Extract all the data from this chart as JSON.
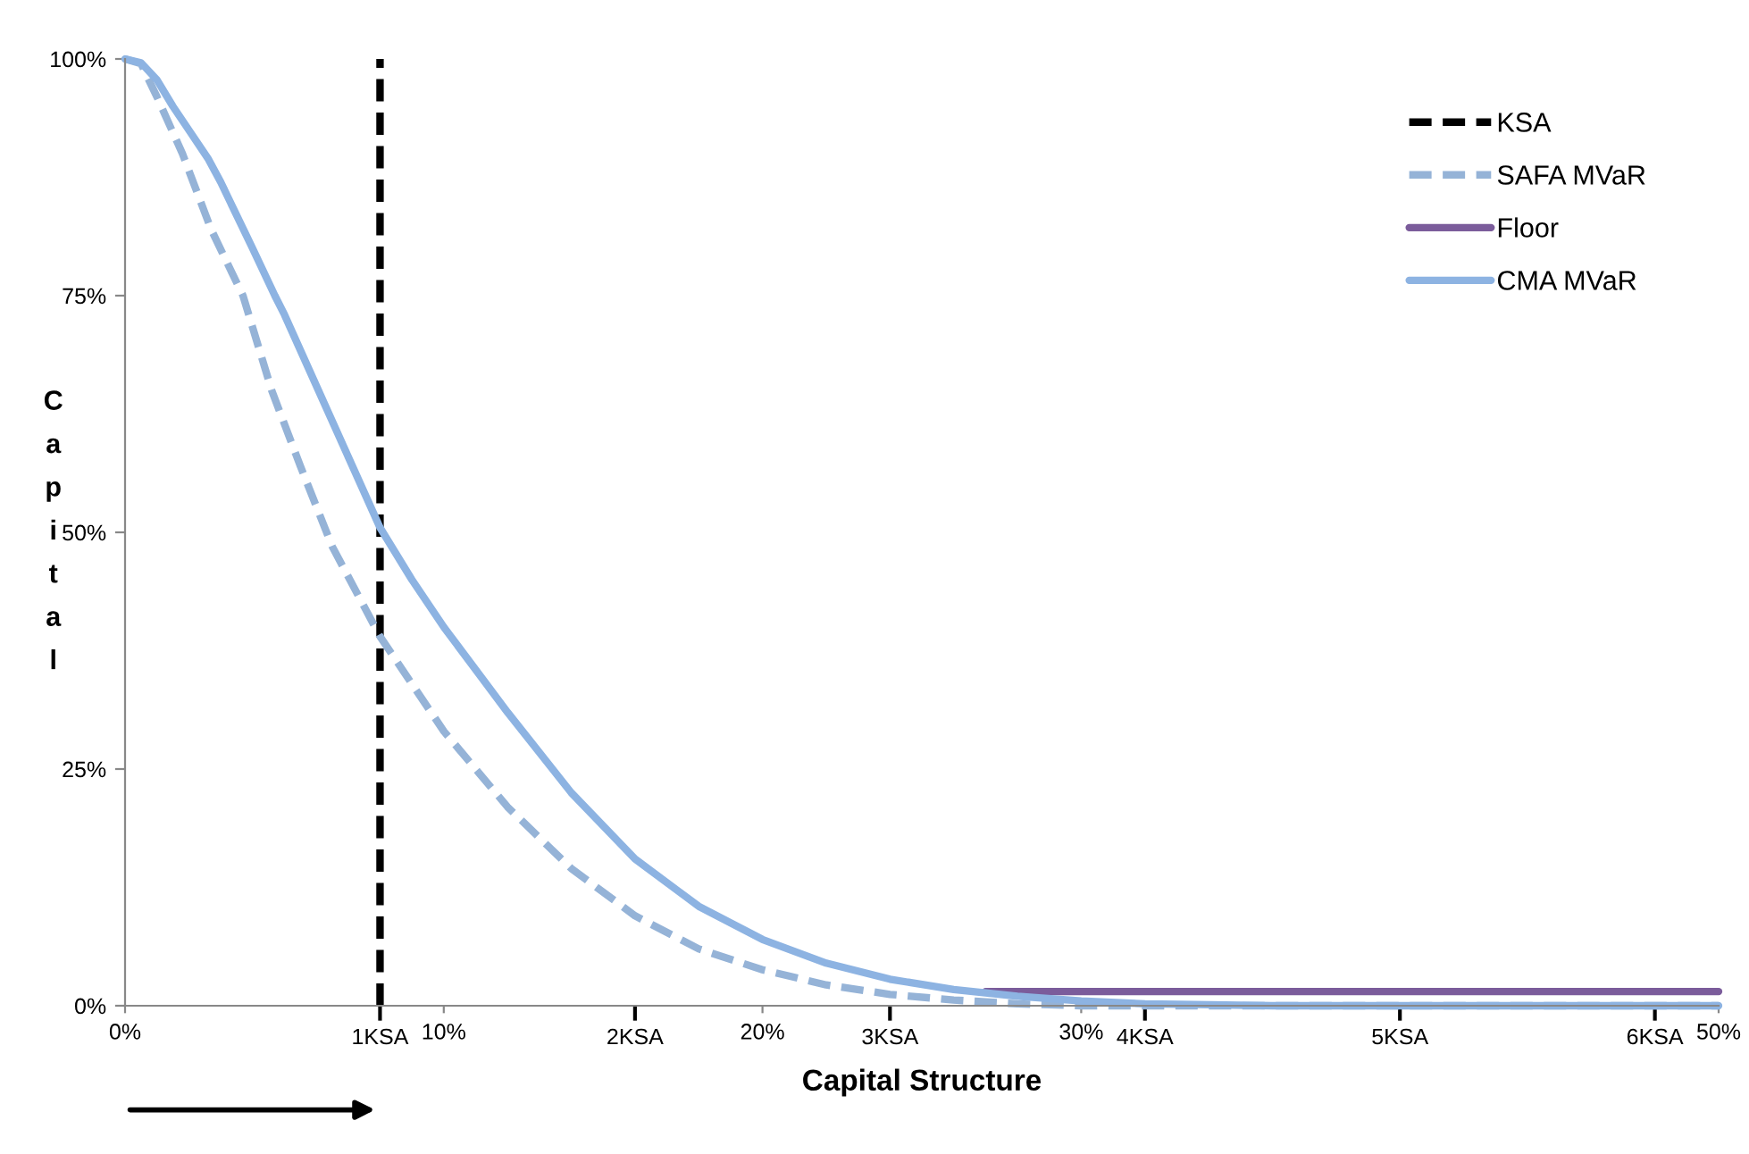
{
  "chart_data": {
    "type": "line",
    "xlabel": "Capital Structure",
    "ylabel": "Capital",
    "xlim": [
      0,
      50
    ],
    "ylim": [
      0,
      100
    ],
    "xticks": [
      {
        "value": 0,
        "label": "0%"
      },
      {
        "value": 10,
        "label": "10%"
      },
      {
        "value": 20,
        "label": "20%"
      },
      {
        "value": 30,
        "label": "30%"
      },
      {
        "value": 50,
        "label": "50%"
      }
    ],
    "x2lim": [
      0,
      6.25
    ],
    "x2ticks": [
      {
        "value": 1,
        "label": "1KSA"
      },
      {
        "value": 2,
        "label": "2KSA"
      },
      {
        "value": 3,
        "label": "3KSA"
      },
      {
        "value": 4,
        "label": "4KSA"
      },
      {
        "value": 5,
        "label": "5KSA"
      },
      {
        "value": 6,
        "label": "6KSA"
      }
    ],
    "yticks": [
      {
        "value": 0,
        "label": "0%"
      },
      {
        "value": 25,
        "label": "25%"
      },
      {
        "value": 50,
        "label": "50%"
      },
      {
        "value": 75,
        "label": "75%"
      },
      {
        "value": 100,
        "label": "100%"
      }
    ],
    "grid": false,
    "legend": "top right",
    "marker": "none",
    "series": [
      {
        "name": "KSA",
        "color": "#000000",
        "line_style": "dashed",
        "x": [
          8,
          8
        ],
        "values": [
          0,
          100
        ]
      },
      {
        "name": "SAFA MVaR",
        "color": "#95b3d7",
        "line_style": "dashed",
        "x": [
          0,
          0.5,
          1,
          1.8,
          2.7,
          3.7,
          4.6,
          5.5,
          6.5,
          8,
          10,
          12,
          14,
          16,
          18,
          20,
          22,
          24,
          26,
          28,
          30,
          50
        ],
        "values": [
          100,
          99.5,
          96,
          90,
          82,
          75,
          65,
          57,
          48.5,
          39,
          29,
          21,
          14.5,
          9.5,
          6,
          3.8,
          2.2,
          1.2,
          0.6,
          0.2,
          0,
          0
        ]
      },
      {
        "name": "Floor",
        "color": "#7b5c9b",
        "line_style": "solid",
        "x": [
          27,
          50
        ],
        "values": [
          1.5,
          1.5
        ]
      },
      {
        "name": "CMA MVaR",
        "color": "#8db3e2",
        "line_style": "solid",
        "x": [
          0,
          0.5,
          1,
          1.5,
          2,
          2.6,
          3,
          4,
          4.7,
          5,
          6,
          7,
          8,
          9,
          10,
          12,
          14,
          16,
          18,
          20,
          22,
          24,
          26,
          28,
          30,
          32,
          34,
          36,
          50
        ],
        "values": [
          100,
          99.6,
          97.8,
          95,
          92.5,
          89.5,
          87,
          80,
          75,
          73,
          65.5,
          58,
          50.5,
          45,
          40,
          31,
          22.5,
          15.5,
          10.5,
          7,
          4.5,
          2.8,
          1.7,
          1,
          0.5,
          0.2,
          0.1,
          0,
          0
        ]
      }
    ]
  }
}
